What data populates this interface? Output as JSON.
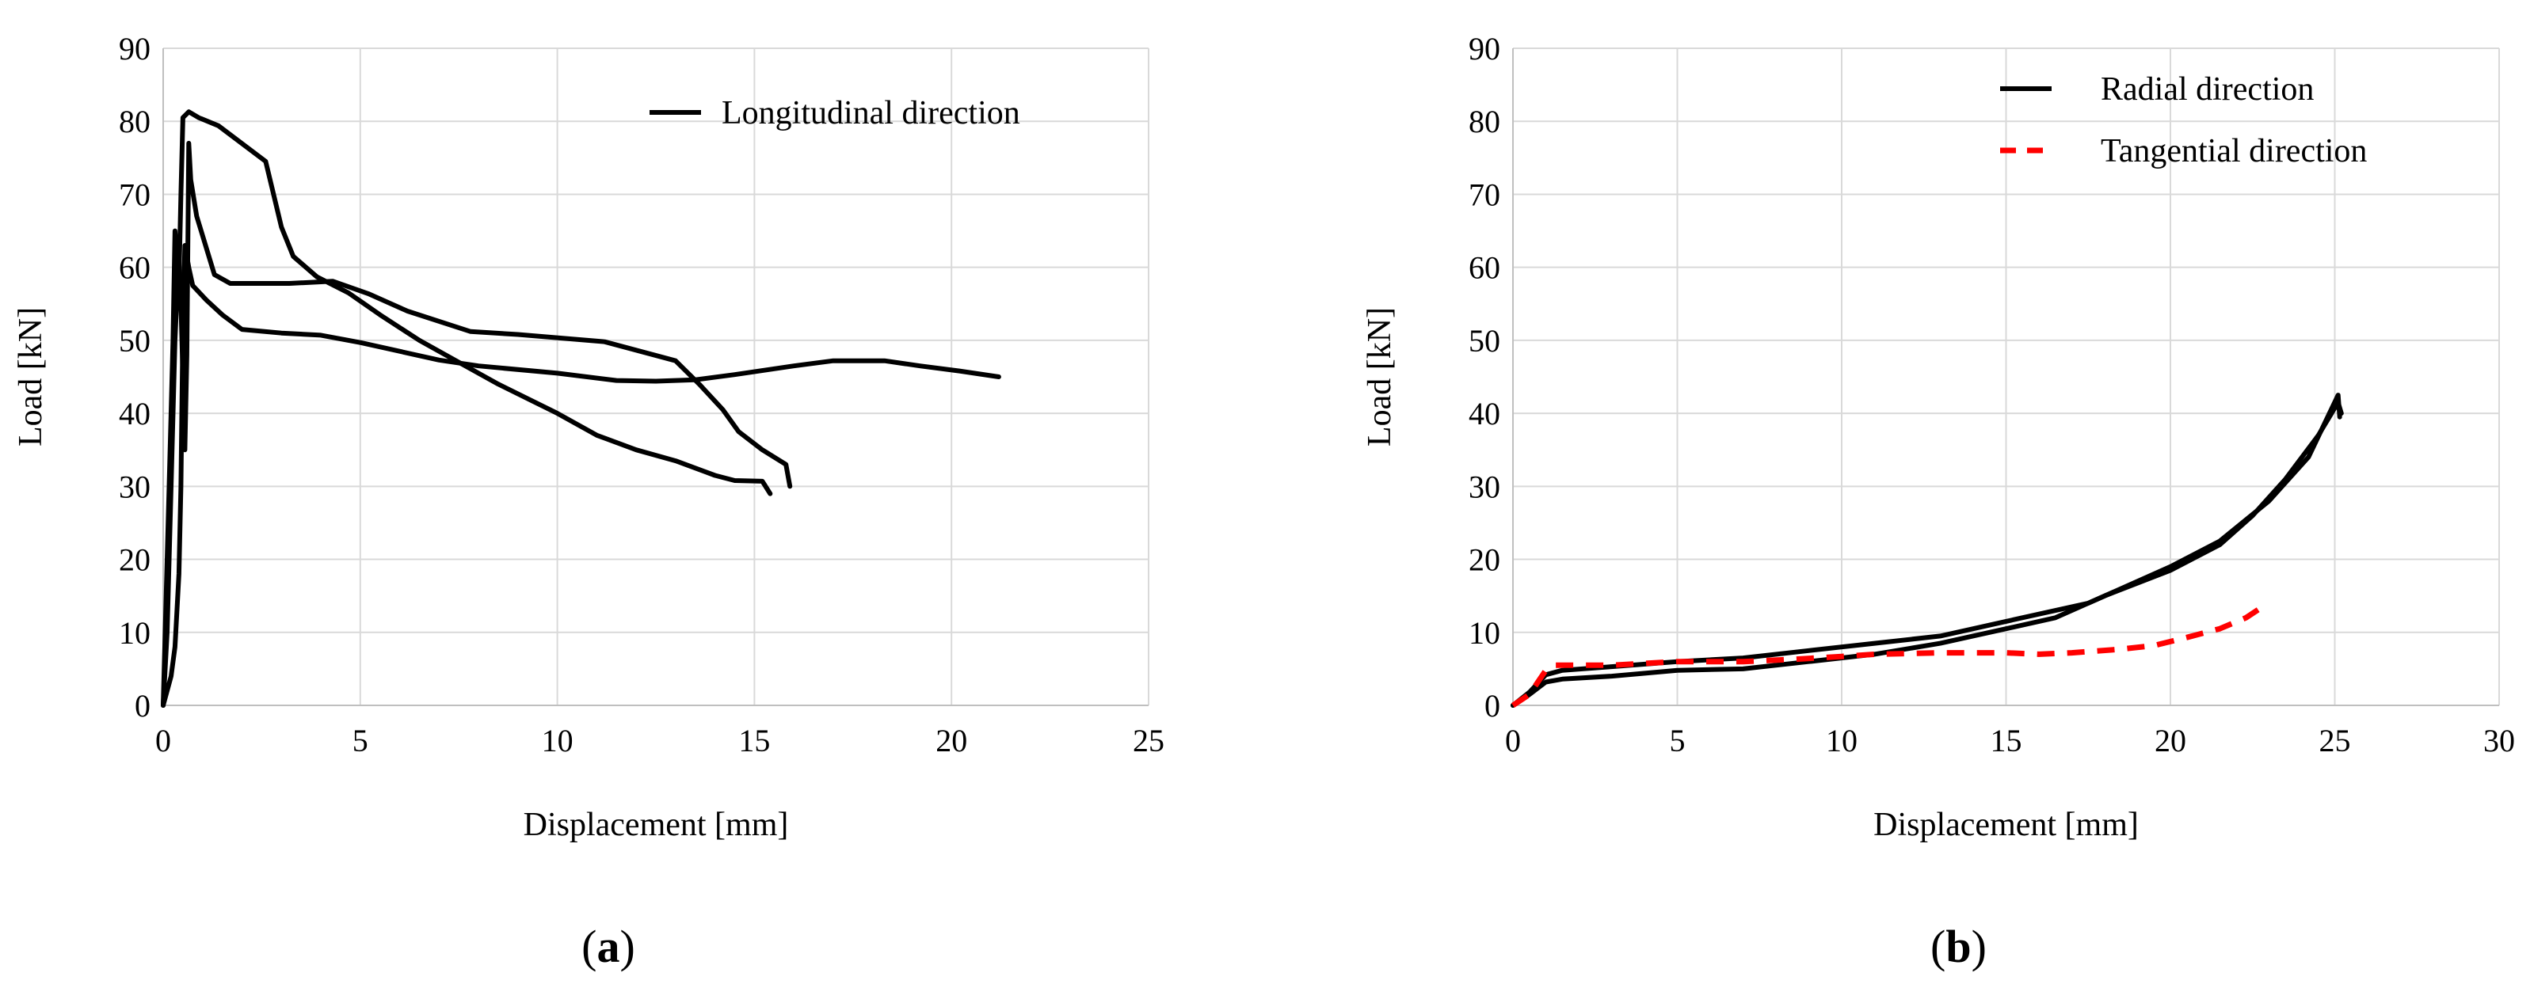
{
  "chart_data": [
    {
      "type": "line",
      "panel_label": "a",
      "xlabel": "Displacement [mm]",
      "ylabel": "Load [kN]",
      "xlim": [
        0,
        25
      ],
      "ylim": [
        0,
        90
      ],
      "xticks": [
        0,
        5,
        10,
        15,
        20,
        25
      ],
      "yticks": [
        0,
        10,
        20,
        30,
        40,
        50,
        60,
        70,
        80,
        90
      ],
      "grid": true,
      "legend_position": "top-right",
      "legend": [
        {
          "label": "Longitudinal direction",
          "color": "#000000",
          "dash": "solid"
        }
      ],
      "series": [
        {
          "color": "#000000",
          "dash": "solid",
          "points": [
            [
              0,
              0
            ],
            [
              0.1,
              10
            ],
            [
              0.2,
              30
            ],
            [
              0.3,
              50
            ],
            [
              0.4,
              62
            ],
            [
              0.45,
              55
            ],
            [
              0.5,
              45
            ],
            [
              0.55,
              35
            ],
            [
              0.6,
              48
            ],
            [
              0.65,
              77
            ],
            [
              0.7,
              72
            ],
            [
              0.85,
              67
            ],
            [
              1.3,
              59
            ],
            [
              1.7,
              57.8
            ],
            [
              3.2,
              57.8
            ],
            [
              4.3,
              58.1
            ],
            [
              5.2,
              56.4
            ],
            [
              6.2,
              54
            ],
            [
              7.8,
              51.2
            ],
            [
              9,
              50.8
            ],
            [
              11.2,
              49.8
            ],
            [
              12.1,
              48.5
            ],
            [
              13,
              47.2
            ],
            [
              13.6,
              44
            ],
            [
              14.2,
              40.5
            ],
            [
              14.6,
              37.5
            ],
            [
              15.2,
              35
            ],
            [
              15.8,
              33
            ],
            [
              15.9,
              30
            ]
          ]
        },
        {
          "color": "#000000",
          "dash": "solid",
          "points": [
            [
              0,
              0
            ],
            [
              0.15,
              30
            ],
            [
              0.25,
              50
            ],
            [
              0.3,
              65
            ],
            [
              0.35,
              61
            ],
            [
              0.4,
              58
            ],
            [
              0.45,
              70
            ],
            [
              0.5,
              80.5
            ],
            [
              0.65,
              81.3
            ],
            [
              0.9,
              80.5
            ],
            [
              1.4,
              79.4
            ],
            [
              2.6,
              74.5
            ],
            [
              3,
              65.5
            ],
            [
              3.3,
              61.5
            ],
            [
              3.9,
              58.7
            ],
            [
              4.7,
              56.5
            ],
            [
              5.5,
              53.5
            ],
            [
              6.5,
              50
            ],
            [
              7.5,
              47
            ],
            [
              8.5,
              44
            ],
            [
              10,
              40
            ],
            [
              11,
              37
            ],
            [
              12,
              35
            ],
            [
              13,
              33.5
            ],
            [
              14,
              31.5
            ],
            [
              14.5,
              30.8
            ],
            [
              15.2,
              30.7
            ],
            [
              15.4,
              29
            ]
          ]
        },
        {
          "color": "#000000",
          "dash": "solid",
          "points": [
            [
              0,
              0
            ],
            [
              0.2,
              4
            ],
            [
              0.3,
              8
            ],
            [
              0.4,
              18
            ],
            [
              0.45,
              30
            ],
            [
              0.5,
              52
            ],
            [
              0.55,
              63
            ],
            [
              0.65,
              60
            ],
            [
              0.75,
              57.5
            ],
            [
              1.1,
              55.5
            ],
            [
              1.5,
              53.5
            ],
            [
              2,
              51.5
            ],
            [
              3,
              51
            ],
            [
              4,
              50.7
            ],
            [
              5,
              49.7
            ],
            [
              7,
              47.3
            ],
            [
              8,
              46.5
            ],
            [
              10,
              45.5
            ],
            [
              11.5,
              44.5
            ],
            [
              12.5,
              44.4
            ],
            [
              13.5,
              44.6
            ],
            [
              14.5,
              45.3
            ],
            [
              16,
              46.5
            ],
            [
              17,
              47.2
            ],
            [
              18.3,
              47.2
            ],
            [
              19.2,
              46.5
            ],
            [
              20.2,
              45.8
            ],
            [
              21.2,
              45
            ]
          ]
        }
      ]
    },
    {
      "type": "line",
      "panel_label": "b",
      "xlabel": "Displacement [mm]",
      "ylabel": "Load [kN]",
      "xlim": [
        0,
        30
      ],
      "ylim": [
        0,
        90
      ],
      "xticks": [
        0,
        5,
        10,
        15,
        20,
        25,
        30
      ],
      "yticks": [
        0,
        10,
        20,
        30,
        40,
        50,
        60,
        70,
        80,
        90
      ],
      "grid": true,
      "legend_position": "top-right",
      "legend": [
        {
          "label": "Radial direction",
          "color": "#000000",
          "dash": "solid"
        },
        {
          "label": "Tangential direction",
          "color": "#ff0000",
          "dash": "dashed"
        }
      ],
      "series": [
        {
          "color": "#000000",
          "dash": "solid",
          "points": [
            [
              0,
              0
            ],
            [
              0.5,
              1.5
            ],
            [
              1,
              3.2
            ],
            [
              1.5,
              3.6
            ],
            [
              3,
              4
            ],
            [
              5,
              4.8
            ],
            [
              7,
              5
            ],
            [
              9,
              6
            ],
            [
              11,
              7
            ],
            [
              13,
              8.5
            ],
            [
              15,
              10.5
            ],
            [
              16.5,
              12
            ],
            [
              18,
              15
            ],
            [
              20,
              18.5
            ],
            [
              21.5,
              22
            ],
            [
              22.5,
              26
            ],
            [
              23.5,
              31
            ],
            [
              24.5,
              37
            ],
            [
              25.1,
              41.5
            ],
            [
              25.2,
              40
            ]
          ]
        },
        {
          "color": "#000000",
          "dash": "solid",
          "points": [
            [
              0,
              0
            ],
            [
              0.5,
              1.8
            ],
            [
              1,
              4.2
            ],
            [
              1.5,
              4.8
            ],
            [
              3,
              5.3
            ],
            [
              5,
              6
            ],
            [
              7,
              6.5
            ],
            [
              9,
              7.5
            ],
            [
              11,
              8.5
            ],
            [
              13,
              9.5
            ],
            [
              15,
              11.5
            ],
            [
              17.5,
              14
            ],
            [
              20,
              19
            ],
            [
              21.5,
              22.5
            ],
            [
              23,
              28
            ],
            [
              24.2,
              34
            ],
            [
              25.1,
              42.5
            ],
            [
              25.15,
              39.5
            ]
          ]
        },
        {
          "color": "#ff0000",
          "dash": "dashed",
          "points": [
            [
              0,
              0
            ],
            [
              0.5,
              1.5
            ],
            [
              1,
              4.8
            ],
            [
              1.3,
              5.5
            ],
            [
              2,
              5.5
            ],
            [
              3,
              5.5
            ],
            [
              5,
              6
            ],
            [
              7,
              6
            ],
            [
              8.5,
              6.3
            ],
            [
              10,
              6.7
            ],
            [
              11,
              7
            ],
            [
              13,
              7.2
            ],
            [
              15,
              7.2
            ],
            [
              16,
              7
            ],
            [
              17,
              7.2
            ],
            [
              18.5,
              7.7
            ],
            [
              19.5,
              8.2
            ],
            [
              20.5,
              9.3
            ],
            [
              21.5,
              10.5
            ],
            [
              22.3,
              12
            ],
            [
              22.8,
              13.5
            ]
          ]
        }
      ]
    }
  ]
}
